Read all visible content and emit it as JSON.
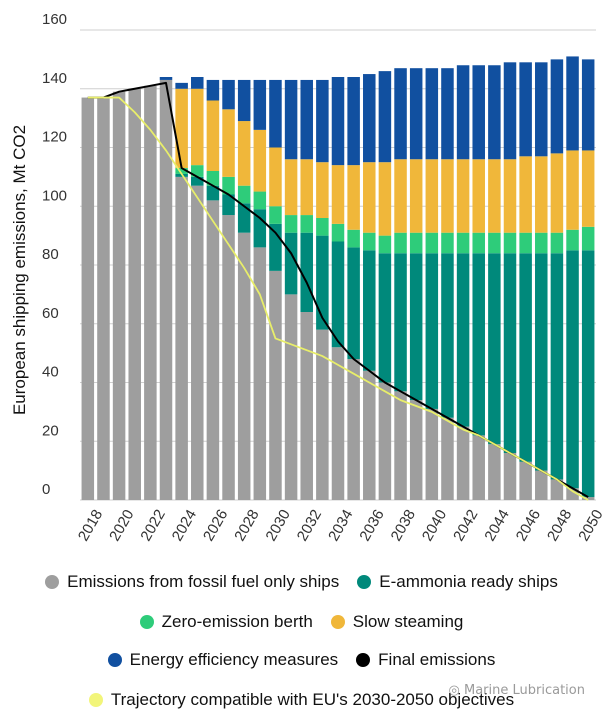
{
  "chart_data": {
    "type": "bar",
    "stacked": true,
    "ylabel": "European shipping emissions, Mt CO2",
    "xlabel": "",
    "ylim": [
      0,
      160
    ],
    "yticks": [
      0,
      20,
      40,
      60,
      80,
      100,
      120,
      140,
      160
    ],
    "grid": true,
    "legend_position": "bottom",
    "categories": [
      2018,
      2019,
      2020,
      2021,
      2022,
      2023,
      2024,
      2025,
      2026,
      2027,
      2028,
      2029,
      2030,
      2031,
      2032,
      2033,
      2034,
      2035,
      2036,
      2037,
      2038,
      2039,
      2040,
      2041,
      2042,
      2043,
      2044,
      2045,
      2046,
      2047,
      2048,
      2049,
      2050
    ],
    "x_tick_labels": [
      "2018",
      "2020",
      "2022",
      "2024",
      "2026",
      "2028",
      "2030",
      "2032",
      "2034",
      "2036",
      "2038",
      "2040",
      "2042",
      "2044",
      "2046",
      "2048",
      "2050"
    ],
    "series": [
      {
        "name": "Emissions from fossil fuel only ships",
        "color": "#9e9e9e",
        "values": [
          137,
          137,
          139,
          140,
          141,
          143,
          110,
          107,
          102,
          97,
          91,
          86,
          78,
          70,
          64,
          58,
          52,
          48,
          44,
          40,
          37,
          34,
          31,
          28,
          25,
          22,
          19,
          16,
          13,
          10,
          7,
          4,
          1
        ]
      },
      {
        "name": "E-ammonia ready ships",
        "color": "#00897b",
        "values": [
          0,
          0,
          0,
          0,
          0,
          0,
          1,
          3,
          5,
          7,
          10,
          13,
          16,
          21,
          27,
          32,
          36,
          38,
          41,
          44,
          47,
          50,
          53,
          56,
          59,
          62,
          65,
          68,
          71,
          74,
          77,
          81,
          84
        ]
      },
      {
        "name": "Zero-emission berth",
        "color": "#2ecc7a",
        "values": [
          0,
          0,
          0,
          0,
          0,
          0,
          2,
          4,
          5,
          6,
          6,
          6,
          6,
          6,
          6,
          6,
          6,
          6,
          6,
          6,
          7,
          7,
          7,
          7,
          7,
          7,
          7,
          7,
          7,
          7,
          7,
          7,
          8
        ]
      },
      {
        "name": "Slow steaming",
        "color": "#f0b73a",
        "values": [
          0,
          0,
          0,
          0,
          0,
          0,
          27,
          26,
          24,
          23,
          22,
          21,
          20,
          19,
          19,
          19,
          20,
          22,
          24,
          25,
          25,
          25,
          25,
          25,
          25,
          25,
          25,
          25,
          26,
          26,
          27,
          27,
          26
        ]
      },
      {
        "name": "Energy efficiency measures",
        "color": "#1150a0",
        "values": [
          0,
          0,
          0,
          0,
          0,
          1,
          2,
          4,
          7,
          10,
          14,
          17,
          23,
          27,
          27,
          28,
          30,
          30,
          30,
          31,
          31,
          31,
          31,
          31,
          32,
          32,
          32,
          33,
          32,
          32,
          32,
          32,
          31
        ]
      }
    ],
    "lines": [
      {
        "name": "Final emissions",
        "color": "#000000",
        "values": [
          137,
          137,
          139,
          140,
          141,
          142,
          113,
          110,
          107,
          104,
          100,
          96,
          91,
          84,
          74,
          62,
          54,
          48,
          44,
          40,
          37,
          34,
          31,
          28,
          25,
          22,
          19,
          16,
          13,
          10,
          7,
          4,
          1
        ]
      },
      {
        "name": "Trajectory compatible with EU's 2030-2050 objectives",
        "color": "#e8ee6a",
        "values": [
          137,
          137,
          137,
          132,
          126,
          119,
          111,
          103,
          95,
          87,
          79,
          70,
          55,
          53,
          51,
          49,
          46,
          43,
          40,
          37,
          34,
          32,
          30,
          27,
          24,
          22,
          19,
          16,
          13,
          10,
          7,
          3,
          0
        ]
      }
    ]
  },
  "legend": {
    "rows": [
      [
        {
          "label": "Emissions from fossil fuel only ships",
          "color": "#9e9e9e",
          "icon": "dot"
        },
        {
          "label": "E-ammonia ready ships",
          "color": "#00897b",
          "icon": "dot"
        }
      ],
      [
        {
          "label": "Zero-emission berth",
          "color": "#2ecc7a",
          "icon": "dot"
        },
        {
          "label": "Slow steaming",
          "color": "#f0b73a",
          "icon": "dot"
        }
      ],
      [
        {
          "label": "Energy efficiency measures",
          "color": "#1150a0",
          "icon": "dot"
        },
        {
          "label": "Final emissions",
          "color": "#000000",
          "icon": "dot"
        }
      ],
      [
        {
          "label": "Trajectory compatible with EU's 2030-2050 objectives",
          "color": "#f2f57a",
          "icon": "dot"
        }
      ]
    ]
  },
  "watermark": "Marine Lubrication"
}
